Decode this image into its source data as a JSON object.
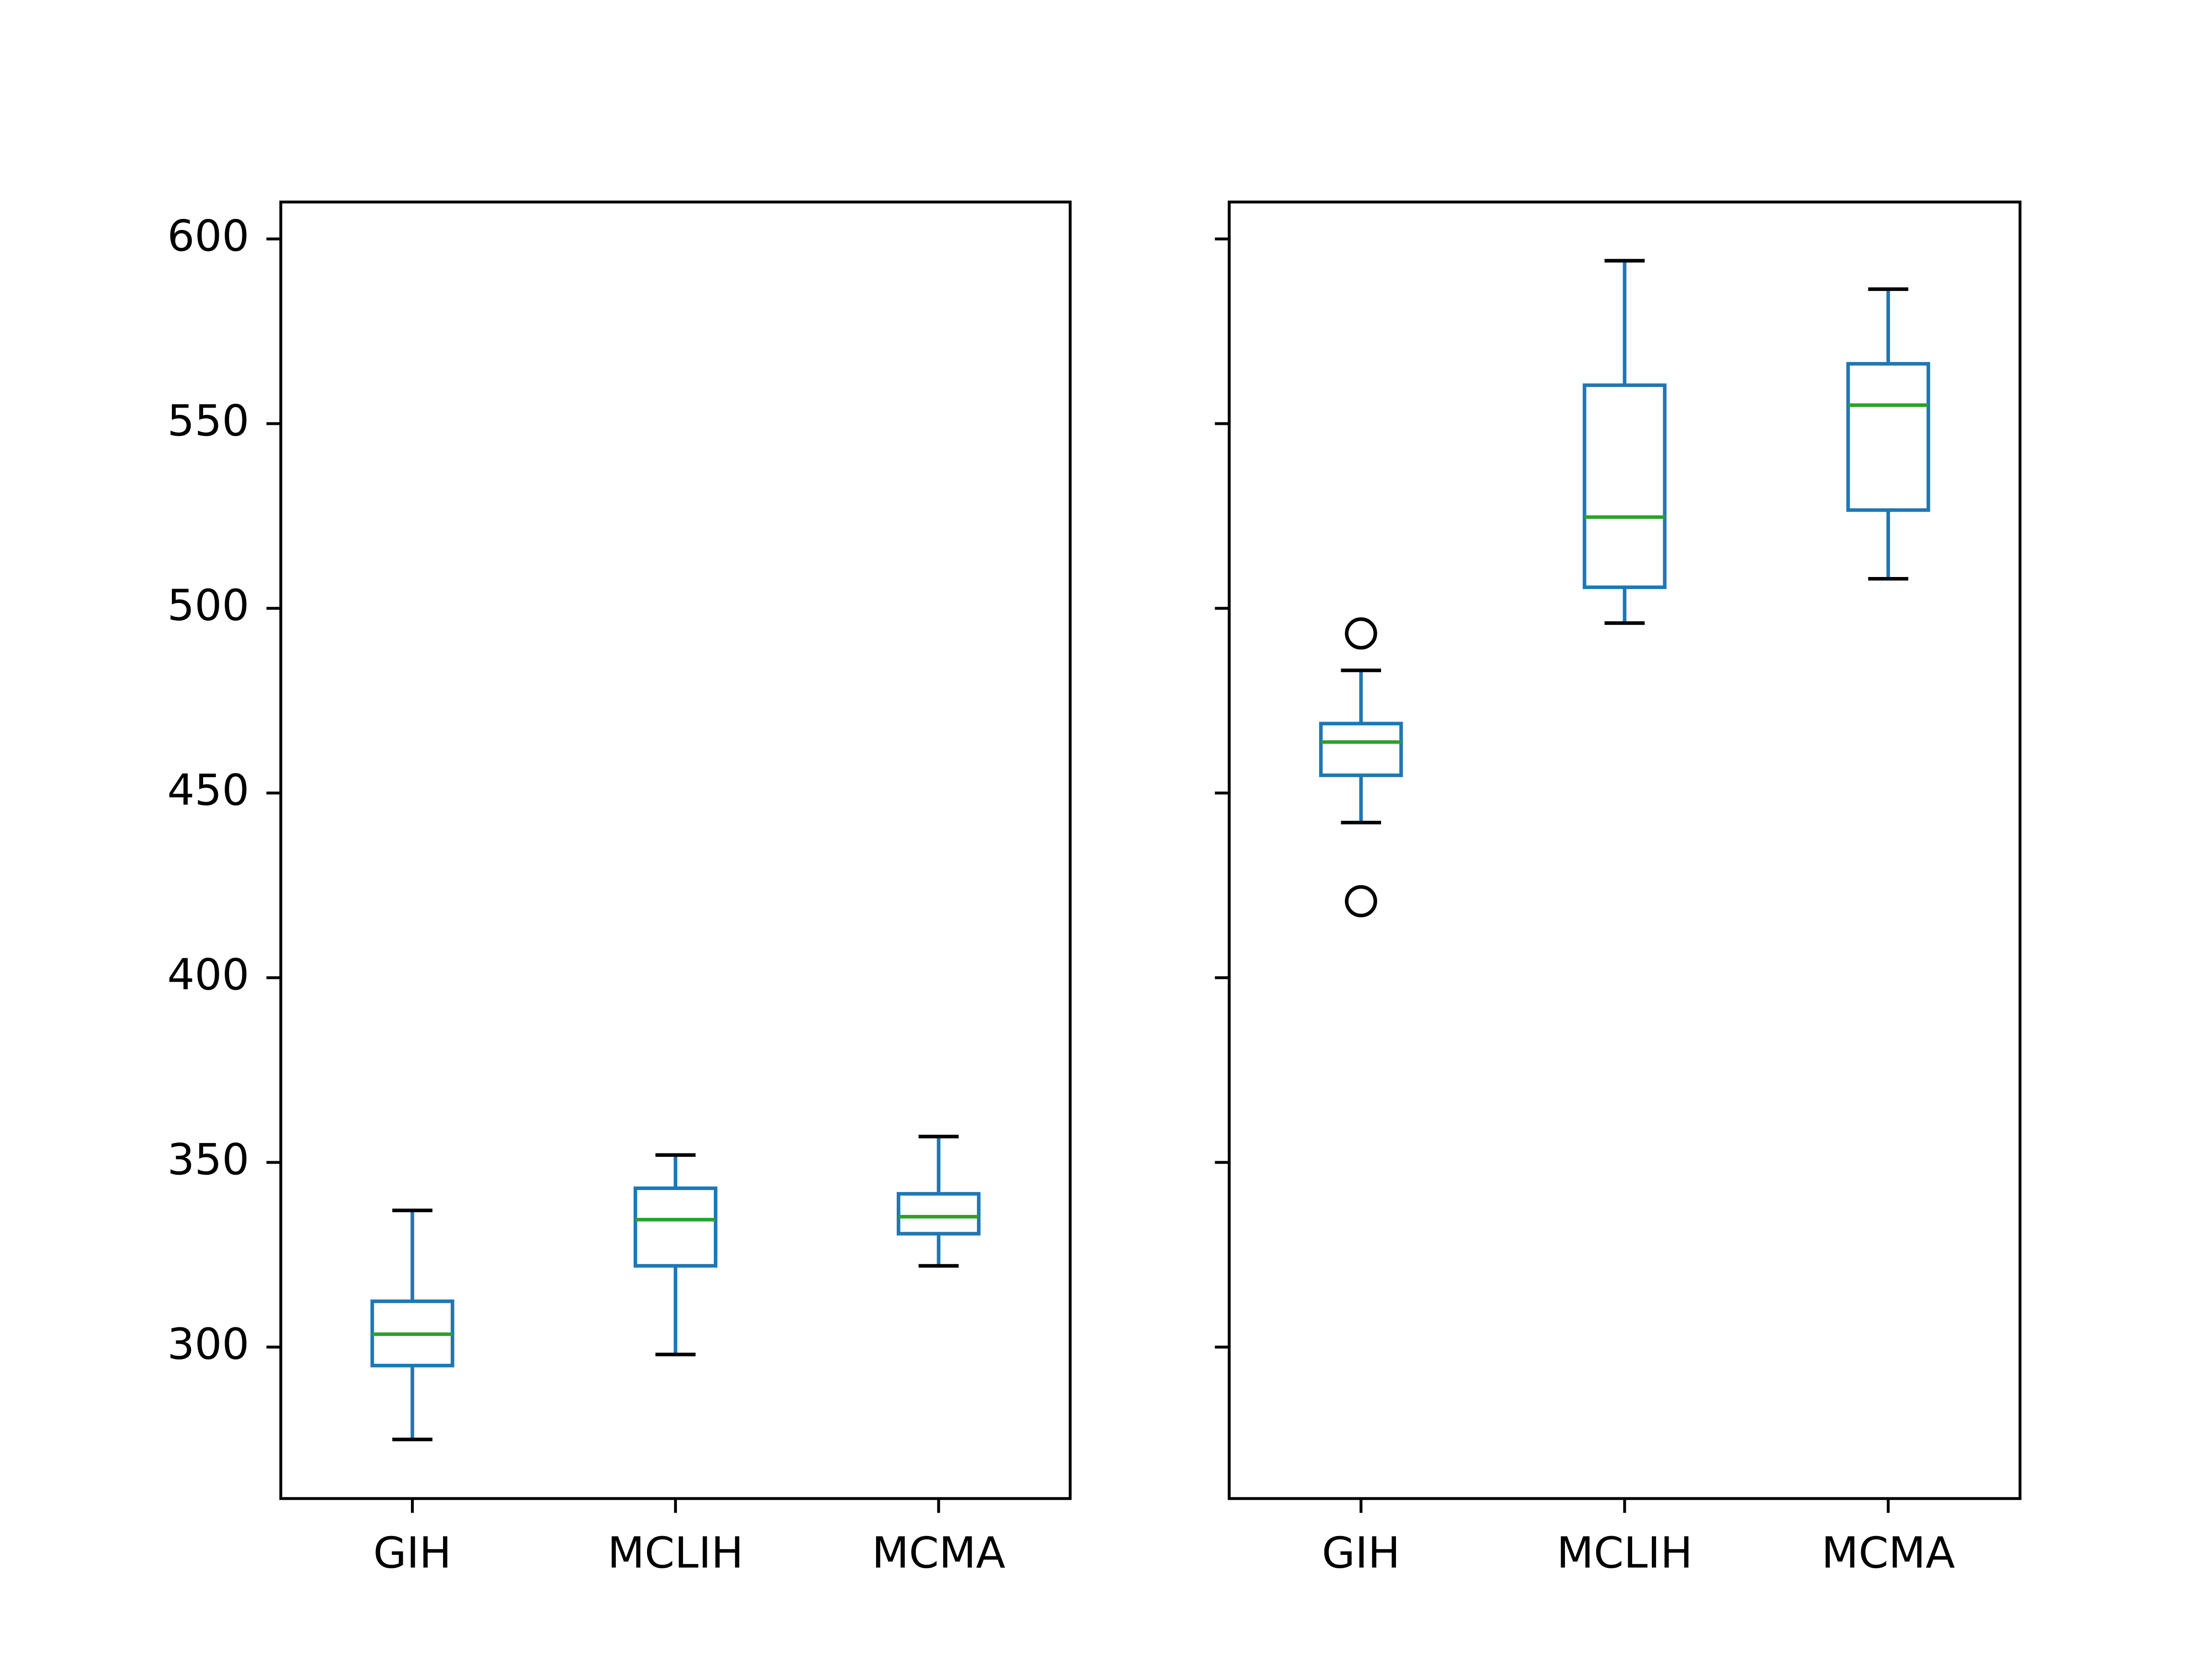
{
  "chart_data": [
    {
      "type": "box",
      "categories": [
        "GIH",
        "MCLIH",
        "MCMA"
      ],
      "boxes": [
        {
          "whislo": 275,
          "q1": 295,
          "med": 303.5,
          "q3": 312.4,
          "whishi": 337
        },
        {
          "whislo": 298,
          "q1": 322,
          "med": 334.5,
          "q3": 343,
          "whishi": 352
        },
        {
          "whislo": 322,
          "q1": 330.7,
          "med": 335.3,
          "q3": 341.5,
          "whishi": 357
        }
      ],
      "box_color": "#1f77b4",
      "median_color": "#2ca02c",
      "cap_color": "#000000",
      "ylim": [
        259,
        610
      ],
      "yticks": [
        300,
        350,
        400,
        450,
        500,
        550,
        600
      ],
      "show_ytick_labels": true
    },
    {
      "type": "box",
      "categories": [
        "GIH",
        "MCLIH",
        "MCMA"
      ],
      "boxes": [
        {
          "whislo": 442,
          "q1": 454.8,
          "med": 463.8,
          "q3": 468.8,
          "whishi": 483.2,
          "fliers": [
            493.2,
            420.7
          ]
        },
        {
          "whislo": 496,
          "q1": 505.7,
          "med": 524.7,
          "q3": 560.4,
          "whishi": 594.1
        },
        {
          "whislo": 508,
          "q1": 526.6,
          "med": 555,
          "q3": 566.2,
          "whishi": 586.4
        }
      ],
      "box_color": "#1f77b4",
      "median_color": "#2ca02c",
      "cap_color": "#000000",
      "ylim": [
        259,
        610
      ],
      "yticks": [
        300,
        350,
        400,
        450,
        500,
        550,
        600
      ],
      "show_ytick_labels": false
    }
  ]
}
